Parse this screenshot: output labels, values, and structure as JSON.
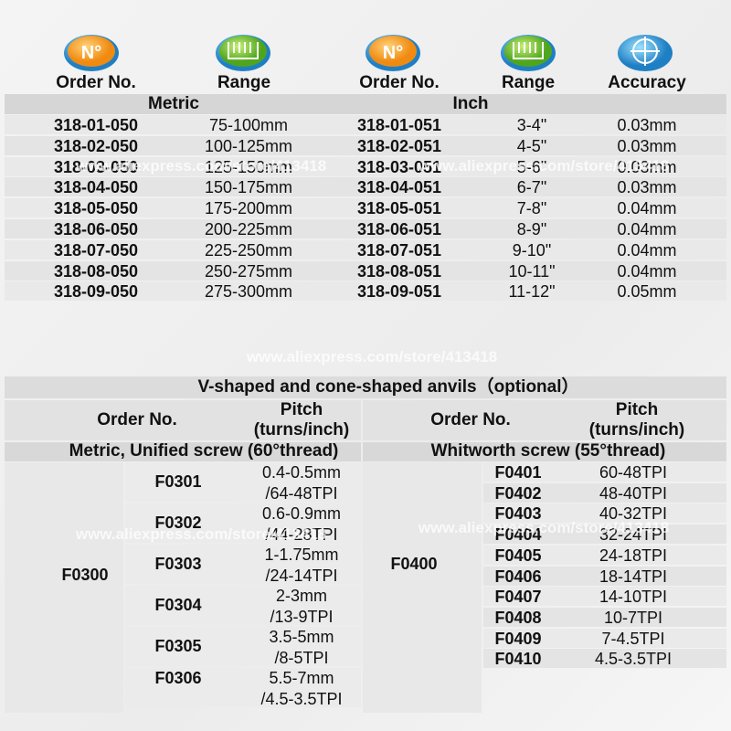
{
  "watermark": "www.aliexpress.com/store/413418",
  "top_table": {
    "headers": [
      "Order No.",
      "Range",
      "Order No.",
      "Range",
      "Accuracy"
    ],
    "groups": [
      "Metric",
      "Inch"
    ],
    "rows": [
      [
        "318-01-050",
        "75-100mm",
        "318-01-051",
        "3-4\"",
        "0.03mm"
      ],
      [
        "318-02-050",
        "100-125mm",
        "318-02-051",
        "4-5\"",
        "0.03mm"
      ],
      [
        "318-03-050",
        "125-150mm",
        "318-03-051",
        "5-6\"",
        "0.03mm"
      ],
      [
        "318-04-050",
        "150-175mm",
        "318-04-051",
        "6-7\"",
        "0.03mm"
      ],
      [
        "318-05-050",
        "175-200mm",
        "318-05-051",
        "7-8\"",
        "0.04mm"
      ],
      [
        "318-06-050",
        "200-225mm",
        "318-06-051",
        "8-9\"",
        "0.04mm"
      ],
      [
        "318-07-050",
        "225-250mm",
        "318-07-051",
        "9-10\"",
        "0.04mm"
      ],
      [
        "318-08-050",
        "250-275mm",
        "318-08-051",
        "10-11\"",
        "0.04mm"
      ],
      [
        "318-09-050",
        "275-300mm",
        "318-09-051",
        "11-12\"",
        "0.05mm"
      ]
    ]
  },
  "bottom_table": {
    "title": "V-shaped and cone-shaped anvils（optional）",
    "left": {
      "order_header": "Order No.",
      "pitch_header": [
        "Pitch",
        "(turns/inch)"
      ],
      "subheader": "Metric, Unified screw (60°thread)",
      "group": "F0300",
      "items": [
        {
          "code": "F0301",
          "pitch": [
            "0.4-0.5mm",
            "/64-48TPI"
          ]
        },
        {
          "code": "F0302",
          "pitch": [
            "0.6-0.9mm",
            "/44-28TPI"
          ]
        },
        {
          "code": "F0303",
          "pitch": [
            "1-1.75mm",
            "/24-14TPI"
          ]
        },
        {
          "code": "F0304",
          "pitch": [
            "2-3mm",
            "/13-9TPI"
          ]
        },
        {
          "code": "F0305",
          "pitch": [
            "3.5-5mm",
            "/8-5TPI"
          ]
        },
        {
          "code": "F0306",
          "pitch": [
            "5.5-7mm",
            "/4.5-3.5TPI"
          ]
        }
      ]
    },
    "right": {
      "order_header": "Order No.",
      "pitch_header": [
        "Pitch",
        "(turns/inch)"
      ],
      "subheader": "Whitworth screw (55°thread)",
      "group": "F0400",
      "items": [
        {
          "code": "F0401",
          "pitch": "60-48TPI"
        },
        {
          "code": "F0402",
          "pitch": "48-40TPI"
        },
        {
          "code": "F0403",
          "pitch": "40-32TPI"
        },
        {
          "code": "F0404",
          "pitch": "32-24TPI"
        },
        {
          "code": "F0405",
          "pitch": "24-18TPI"
        },
        {
          "code": "F0406",
          "pitch": "18-14TPI"
        },
        {
          "code": "F0407",
          "pitch": "14-10TPI"
        },
        {
          "code": "F0408",
          "pitch": "10-7TPI"
        },
        {
          "code": "F0409",
          "pitch": "7-4.5TPI"
        },
        {
          "code": "F0410",
          "pitch": "4.5-3.5TPI"
        }
      ]
    }
  }
}
